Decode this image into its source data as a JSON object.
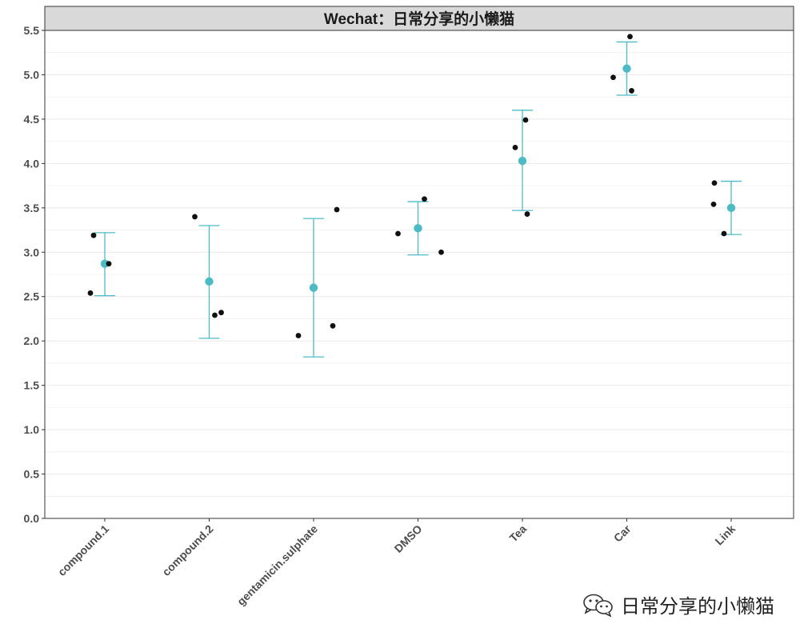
{
  "watermark": {
    "text": "日常分享的小懒猫",
    "icon": "wechat-icon"
  },
  "colors": {
    "mean": "#4DBBC6",
    "point": "#111111",
    "grid": "#ebebeb",
    "strip": "#d9d9d9",
    "border": "#333333"
  },
  "chart_data": {
    "type": "scatter",
    "title": "Wechat：日常分享的小懒猫",
    "xlabel": "",
    "ylabel": "",
    "ylim": [
      0,
      5.5
    ],
    "yticks": [
      "0.0",
      "0.5",
      "1.0",
      "1.5",
      "2.0",
      "2.5",
      "3.0",
      "3.5",
      "4.0",
      "4.5",
      "5.0",
      "5.5"
    ],
    "grid": true,
    "legend": "none",
    "categories": [
      "compound.1",
      "compound.2",
      "gentamicin.sulphate",
      "DMSO",
      "Tea",
      "Car",
      "Link"
    ],
    "series": [
      {
        "points": [
          [
            2.54,
            3.19,
            2.87
          ],
          [
            3.4,
            2.29,
            2.32
          ],
          [
            2.06,
            2.17,
            3.48
          ],
          [
            3.21,
            3.6,
            3.0
          ],
          [
            4.18,
            4.49,
            3.43
          ],
          [
            4.97,
            5.43,
            4.82
          ],
          [
            3.54,
            3.78,
            3.21
          ]
        ]
      },
      {
        "mean": [
          2.87,
          2.67,
          2.6,
          3.27,
          4.03,
          5.07,
          3.5
        ],
        "lower": [
          2.51,
          2.03,
          1.82,
          2.97,
          3.47,
          4.77,
          3.2
        ],
        "upper": [
          3.22,
          3.3,
          3.38,
          3.57,
          4.6,
          5.37,
          3.8
        ]
      }
    ]
  }
}
